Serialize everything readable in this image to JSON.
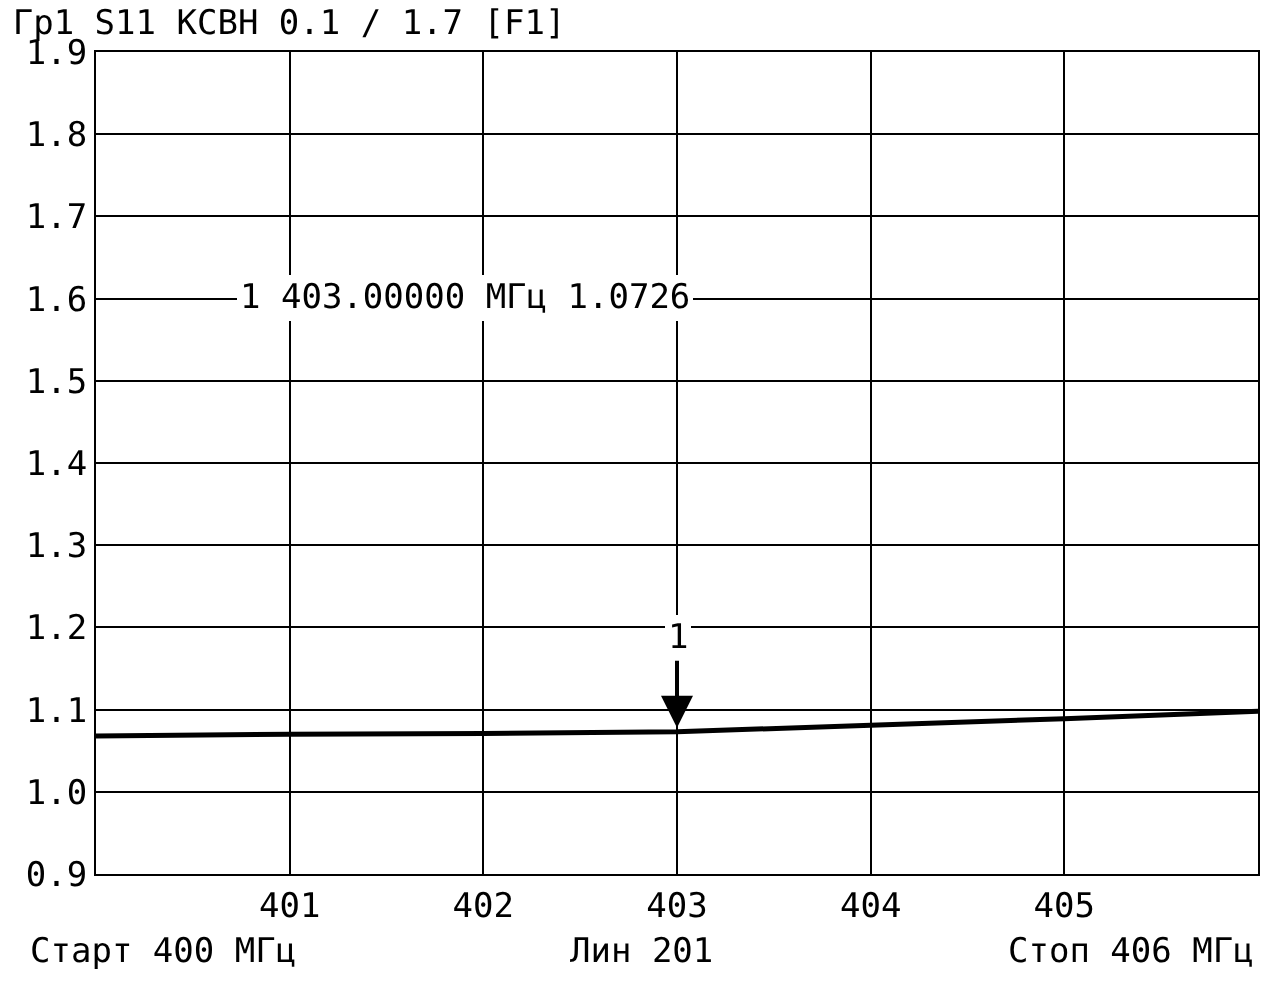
{
  "chart_data": {
    "type": "line",
    "title": "Гр1 S11 КСВН 0.1 / 1.7 [F1]",
    "x": [
      400,
      401,
      402,
      403,
      404,
      405,
      406
    ],
    "series": [
      {
        "color": "#000000",
        "values": [
          1.068,
          1.07,
          1.071,
          1.073,
          1.081,
          1.089,
          1.098
        ]
      }
    ],
    "xlim": [
      400,
      406
    ],
    "xticks": [
      401,
      402,
      403,
      404,
      405
    ],
    "ylim": [
      0.9,
      1.9
    ],
    "yticks": [
      0.9,
      {
        "value": 1.0,
        "label": "1.0"
      },
      1.1,
      1.2,
      1.3,
      1.4,
      1.5,
      1.6,
      1.7,
      1.8,
      1.9
    ],
    "grid": true,
    "marker": "none",
    "line_style": "solid",
    "annotations": [
      {
        "text": "1",
        "x": 403,
        "y": 1.073
      },
      "1 403.00000 МГц 1.0726",
      "Старт 400 МГц",
      "Лин 201",
      "Стоп 406 МГц"
    ]
  }
}
